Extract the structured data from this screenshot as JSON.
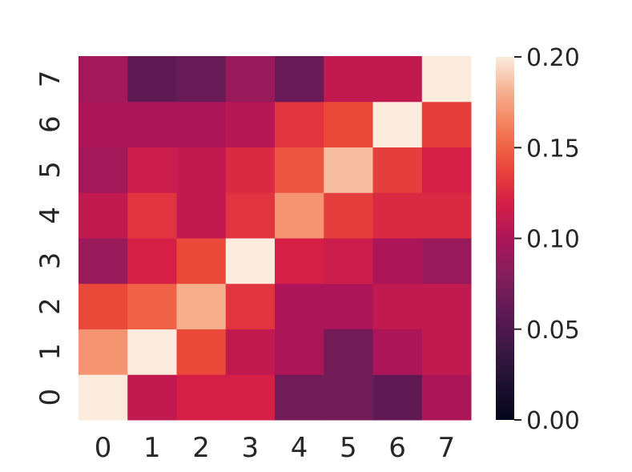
{
  "chart_data": {
    "type": "heatmap",
    "title": "",
    "xlabel": "",
    "ylabel": "",
    "x_categories": [
      "0",
      "1",
      "2",
      "3",
      "4",
      "5",
      "6",
      "7"
    ],
    "y_categories": [
      "0",
      "1",
      "2",
      "3",
      "4",
      "5",
      "6",
      "7"
    ],
    "y_order": "bottom-to-top",
    "values": [
      [
        0.2,
        0.11,
        0.12,
        0.12,
        0.07,
        0.07,
        0.06,
        0.1
      ],
      [
        0.17,
        0.2,
        0.14,
        0.11,
        0.1,
        0.07,
        0.1,
        0.11
      ],
      [
        0.14,
        0.15,
        0.18,
        0.13,
        0.1,
        0.1,
        0.11,
        0.11
      ],
      [
        0.09,
        0.12,
        0.14,
        0.2,
        0.12,
        0.115,
        0.1,
        0.09
      ],
      [
        0.11,
        0.13,
        0.11,
        0.13,
        0.17,
        0.135,
        0.125,
        0.125
      ],
      [
        0.095,
        0.115,
        0.11,
        0.125,
        0.145,
        0.185,
        0.135,
        0.12
      ],
      [
        0.1,
        0.1,
        0.1,
        0.105,
        0.13,
        0.14,
        0.2,
        0.135
      ],
      [
        0.095,
        0.06,
        0.065,
        0.09,
        0.065,
        0.11,
        0.11,
        0.2
      ]
    ],
    "colorbar": {
      "vmin": 0.0,
      "vmax": 0.2,
      "ticks": [
        0.0,
        0.05,
        0.1,
        0.15,
        0.2
      ],
      "tick_labels": [
        "0.00",
        "0.05",
        "0.10",
        "0.15",
        "0.20"
      ],
      "colormap": "rocket"
    },
    "grid": false,
    "legend": "colorbar-right"
  }
}
